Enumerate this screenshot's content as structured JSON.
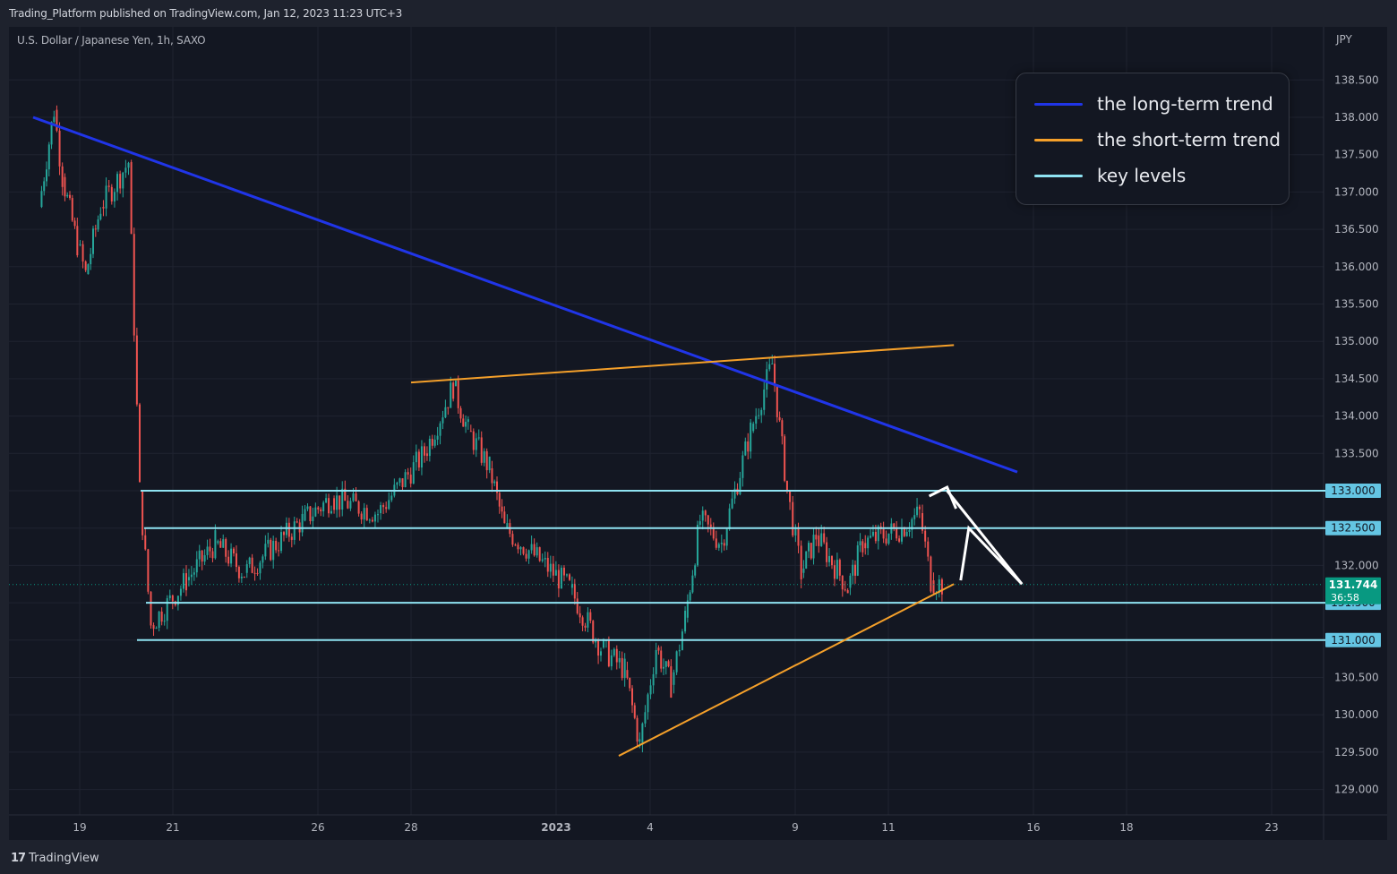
{
  "header": {
    "publish_line": "Trading_Platform published on TradingView.com, Jan 12, 2023 11:23 UTC+3"
  },
  "chart": {
    "symbol_line": "U.S. Dollar / Japanese Yen, 1h, SAXO",
    "currency": "JPY"
  },
  "legend": {
    "items": [
      {
        "label": "the long-term trend",
        "color": "#2035e8"
      },
      {
        "label": "the short-term trend",
        "color": "#f5a02a"
      },
      {
        "label": "key levels",
        "color": "#8fe3f2"
      }
    ]
  },
  "footer": {
    "logo_mark": "17",
    "logo_text": "TradingView"
  },
  "colors": {
    "background": "#131722",
    "up_candle": "#26a69a",
    "down_candle": "#ef5350",
    "long_trend": "#2035e8",
    "short_trend": "#f5a02a",
    "key_level": "#8fe3f2",
    "price_tag": "#089981",
    "projection": "#ffffff"
  },
  "chart_data": {
    "type": "candlestick",
    "title": "U.S. Dollar / Japanese Yen, 1h, SAXO",
    "ylabel": "JPY",
    "ylim": [
      128.6,
      138.8
    ],
    "y_ticks": [
      "138.500",
      "138.000",
      "137.500",
      "137.000",
      "136.500",
      "136.000",
      "135.500",
      "135.000",
      "134.500",
      "134.000",
      "133.500",
      "133.000",
      "132.500",
      "132.000",
      "131.500",
      "131.000",
      "130.500",
      "130.000",
      "129.500",
      "129.000"
    ],
    "x_ticks": [
      "19",
      "21",
      "26",
      "28",
      "2023",
      "4",
      "9",
      "11",
      "16",
      "18",
      "23"
    ],
    "grid": true,
    "last_price": {
      "value": "131.744",
      "countdown": "36:58"
    },
    "key_levels": [
      {
        "value": 133.0,
        "label": "133.000"
      },
      {
        "value": 132.5,
        "label": "132.500"
      },
      {
        "value": 131.5,
        "label": "131.500"
      },
      {
        "value": 131.0,
        "label": "131.000"
      }
    ],
    "trend_lines": [
      {
        "name": "the long-term trend",
        "from": [
          "Dec 17",
          138.0
        ],
        "to": [
          "Jan 17",
          133.25
        ]
      },
      {
        "name": "the short-term trend",
        "from": [
          "Dec 28",
          134.45
        ],
        "to": [
          "Jan 14",
          134.95
        ]
      },
      {
        "name": "the short-term trend",
        "from": [
          "Jan 3",
          129.45
        ],
        "to": [
          "Jan 14",
          131.75
        ]
      }
    ],
    "price_path": [
      [
        "Dec 17",
        136.8
      ],
      [
        "Dec 17",
        138.1
      ],
      [
        "Dec 18",
        137.2
      ],
      [
        "Dec 18",
        136.3
      ],
      [
        "Dec 19",
        135.9
      ],
      [
        "Dec 19",
        136.8
      ],
      [
        "Dec 20",
        137.4
      ],
      [
        "Dec 20",
        133.0
      ],
      [
        "Dec 20",
        131.2
      ],
      [
        "Dec 21",
        131.8
      ],
      [
        "Dec 22",
        132.3
      ],
      [
        "Dec 23",
        131.9
      ],
      [
        "Dec 25",
        132.6
      ],
      [
        "Dec 26",
        132.9
      ],
      [
        "Dec 27",
        132.7
      ],
      [
        "Dec 28",
        133.5
      ],
      [
        "Dec 29",
        134.4
      ],
      [
        "Dec 29",
        133.8
      ],
      [
        "Dec 30",
        133.3
      ],
      [
        "Dec 30",
        132.5
      ],
      [
        "Jan 1",
        131.7
      ],
      [
        "Jan 2",
        130.9
      ],
      [
        "Jan 3",
        130.6
      ],
      [
        "Jan 3",
        129.6
      ],
      [
        "Jan 4",
        130.9
      ],
      [
        "Jan 4",
        130.4
      ],
      [
        "Jan 5",
        131.3
      ],
      [
        "Jan 5",
        132.6
      ],
      [
        "Jan 6",
        132.3
      ],
      [
        "Jan 7",
        133.8
      ],
      [
        "Jan 8",
        134.7
      ],
      [
        "Jan 8",
        133.0
      ],
      [
        "Jan 9",
        131.9
      ],
      [
        "Jan 9",
        132.4
      ],
      [
        "Jan 10",
        131.7
      ],
      [
        "Jan 10",
        132.3
      ],
      [
        "Jan 11",
        132.5
      ],
      [
        "Jan 12",
        132.7
      ],
      [
        "Jan 12",
        131.8
      ],
      [
        "Jan 12",
        131.74
      ]
    ],
    "projection": [
      [
        "Jan 13",
        131.8
      ],
      [
        "Jan 13",
        132.5
      ],
      [
        "Jan 14",
        131.75
      ],
      [
        "Jan 15",
        133.0
      ]
    ]
  }
}
